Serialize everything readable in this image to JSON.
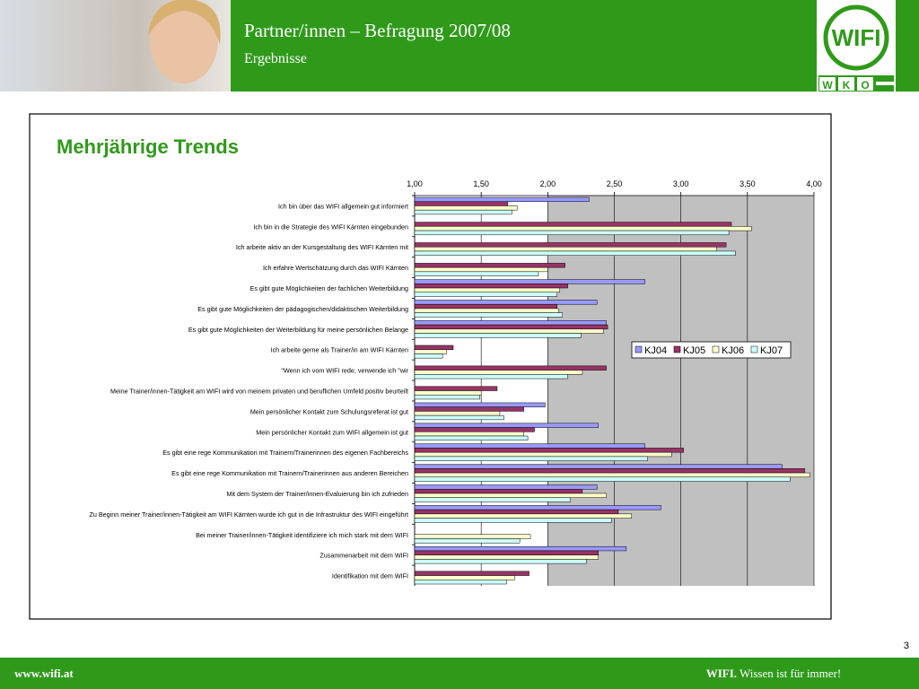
{
  "header": {
    "title": "Partner/innen – Befragung 2007/08",
    "subtitle": "Ergebnisse"
  },
  "logo": {
    "main": "WIFI",
    "letters": [
      "W",
      "K",
      "O"
    ]
  },
  "footer": {
    "url": "www.wifi.at",
    "brand": "WIFI.",
    "slogan": "Wissen ist für immer!"
  },
  "page_number": "3",
  "chart_data": {
    "type": "hbar",
    "title": "Mehrjährige Trends",
    "categories": [
      "Ich bin über das WIFI allgemein gut informiert",
      "Ich bin in die Strategie des WIFI Kärnten eingebunden",
      "Ich arbeite aktiv an der Kursgestaltung des WIFI Kärnten mit",
      "Ich erfahre Wertschätzung durch das WIFI Kärnten",
      "Es gibt gute Möglichkeiten der fachlichen Weiterbildung",
      "Es gibt gute Möglichkeiten der pädagogischen/didaktischen Weiterbildung",
      "Es gibt gute Möglichkeiten der Weiterbildung für meine persönlichen Belange",
      "Ich arbeite gerne als Trainer/in am WIFI Kärnten",
      "\"Wenn ich vom WIFI rede, verwende ich \"wir",
      "Meine Trainer/innen-Tätigkeit am WIFI wird von meinem privaten und beruflichen Umfeld positiv beurteilt",
      "Mein persönlicher Kontakt zum Schulungsreferat ist gut",
      "Mein persönlicher Kontakt zum WIFI allgemein ist gut",
      "Es gibt eine rege Kommunikation mit Trainern/Trainerinnen des eigenen Fachbereichs",
      "Es gibt eine rege Kommunikation mit Trainern/Trainerinnen aus anderen Bereichen",
      "Mit dem System der Trainer/innen-Evaluierung bin ich zufrieden",
      "Zu Beginn meiner Trainer/innen-Tätigkeit am WIFI Kärnten wurde ich gut in die Infrastruktur des WIFI eingeführt",
      "Bei meiner Trainer/innen-Tätigkeit identifiziere ich mich stark mit dem WIFI",
      "Zusammenarbeit mit dem WIFI",
      "Identifikation mit dem WIFI"
    ],
    "series": [
      {
        "name": "KJ04",
        "color": "#9999ff",
        "values": [
          2.31,
          null,
          null,
          null,
          2.73,
          2.37,
          2.44,
          null,
          null,
          null,
          1.98,
          2.38,
          2.73,
          3.76,
          2.37,
          2.85,
          null,
          2.59,
          null
        ]
      },
      {
        "name": "KJ05",
        "color": "#993366",
        "values": [
          1.7,
          3.38,
          3.34,
          2.13,
          2.15,
          2.07,
          2.45,
          1.29,
          2.44,
          1.62,
          1.82,
          1.9,
          3.02,
          3.93,
          2.26,
          2.53,
          null,
          2.38,
          1.86
        ]
      },
      {
        "name": "KJ06",
        "color": "#ffffcc",
        "values": [
          1.77,
          3.53,
          3.27,
          2.0,
          2.09,
          2.08,
          2.42,
          1.24,
          2.26,
          1.5,
          1.64,
          1.82,
          2.93,
          3.97,
          2.44,
          2.63,
          1.87,
          2.38,
          1.75
        ]
      },
      {
        "name": "KJ07",
        "color": "#ccffff",
        "values": [
          1.73,
          3.36,
          3.41,
          1.93,
          2.07,
          2.11,
          2.25,
          1.21,
          2.15,
          1.49,
          1.67,
          1.85,
          2.75,
          3.82,
          2.17,
          2.48,
          1.79,
          2.29,
          1.69
        ]
      }
    ],
    "xlim": [
      1,
      4
    ],
    "xticks": [
      {
        "value": 1,
        "label": "1,00"
      },
      {
        "value": 1.5,
        "label": "1,50"
      },
      {
        "value": 2,
        "label": "2,00"
      },
      {
        "value": 2.5,
        "label": "2,50"
      },
      {
        "value": 3,
        "label": "3,00"
      },
      {
        "value": 3.5,
        "label": "3,50"
      },
      {
        "value": 4,
        "label": "4,00"
      }
    ],
    "grid": true,
    "legend": "right"
  }
}
